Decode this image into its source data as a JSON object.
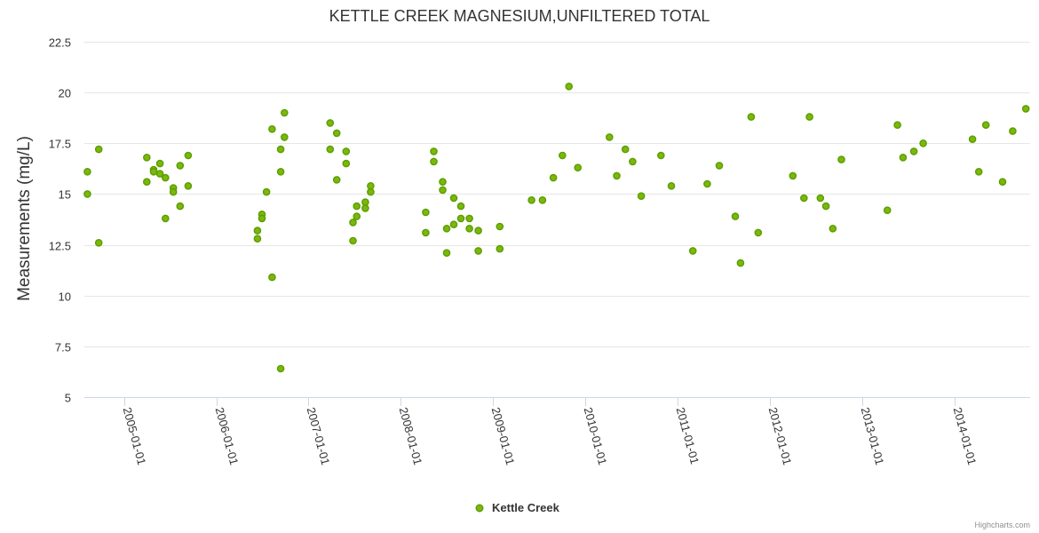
{
  "chart_data": {
    "type": "scatter",
    "title": "KETTLE CREEK MAGNESIUM,UNFILTERED TOTAL",
    "xlabel": "",
    "ylabel": "Measurements (mg/L)",
    "xlim": [
      "2004-07-28",
      "2014-10-27"
    ],
    "ylim": [
      5,
      22.5
    ],
    "y_ticks": [
      5,
      7.5,
      10,
      12.5,
      15,
      17.5,
      20,
      22.5
    ],
    "y_tick_labels": [
      "5",
      "7.5",
      "10",
      "12.5",
      "15",
      "17.5",
      "20",
      "22.5"
    ],
    "x_tick_labels": [
      "2005-01-01",
      "2006-01-01",
      "2007-01-01",
      "2008-01-01",
      "2009-01-01",
      "2010-01-01",
      "2011-01-01",
      "2012-01-01",
      "2013-01-01",
      "2014-01-01"
    ],
    "grid": true,
    "legend_position": "bottom-center",
    "series": [
      {
        "name": "Kettle Creek",
        "color": "#7cb70b",
        "points": [
          {
            "x": "2004-08-09",
            "y": 16.1
          },
          {
            "x": "2004-08-09",
            "y": 15.0
          },
          {
            "x": "2004-09-23",
            "y": 17.2
          },
          {
            "x": "2004-09-23",
            "y": 12.6
          },
          {
            "x": "2005-04-01",
            "y": 16.8
          },
          {
            "x": "2005-04-01",
            "y": 15.6
          },
          {
            "x": "2005-04-28",
            "y": 16.2
          },
          {
            "x": "2005-04-28",
            "y": 16.1
          },
          {
            "x": "2005-05-23",
            "y": 16.5
          },
          {
            "x": "2005-05-23",
            "y": 16.0
          },
          {
            "x": "2005-06-14",
            "y": 15.8
          },
          {
            "x": "2005-06-14",
            "y": 13.8
          },
          {
            "x": "2005-07-15",
            "y": 15.3
          },
          {
            "x": "2005-07-15",
            "y": 15.1
          },
          {
            "x": "2005-08-11",
            "y": 16.4
          },
          {
            "x": "2005-08-11",
            "y": 14.4
          },
          {
            "x": "2005-09-12",
            "y": 16.9
          },
          {
            "x": "2005-09-12",
            "y": 15.4
          },
          {
            "x": "2006-06-13",
            "y": 13.2
          },
          {
            "x": "2006-06-13",
            "y": 12.8
          },
          {
            "x": "2006-07-01",
            "y": 14.0
          },
          {
            "x": "2006-07-01",
            "y": 13.8
          },
          {
            "x": "2006-07-19",
            "y": 15.1
          },
          {
            "x": "2006-08-10",
            "y": 18.2
          },
          {
            "x": "2006-08-10",
            "y": 10.9
          },
          {
            "x": "2006-09-13",
            "y": 17.2
          },
          {
            "x": "2006-09-13",
            "y": 16.1
          },
          {
            "x": "2006-09-13",
            "y": 6.4
          },
          {
            "x": "2006-09-28",
            "y": 19.0
          },
          {
            "x": "2006-09-28",
            "y": 17.8
          },
          {
            "x": "2007-03-28",
            "y": 18.5
          },
          {
            "x": "2007-03-28",
            "y": 17.2
          },
          {
            "x": "2007-04-23",
            "y": 18.0
          },
          {
            "x": "2007-04-23",
            "y": 15.7
          },
          {
            "x": "2007-05-30",
            "y": 17.1
          },
          {
            "x": "2007-05-30",
            "y": 16.5
          },
          {
            "x": "2007-06-26",
            "y": 13.6
          },
          {
            "x": "2007-06-26",
            "y": 12.7
          },
          {
            "x": "2007-07-11",
            "y": 14.4
          },
          {
            "x": "2007-07-11",
            "y": 13.9
          },
          {
            "x": "2007-08-14",
            "y": 14.6
          },
          {
            "x": "2007-08-14",
            "y": 14.3
          },
          {
            "x": "2007-09-04",
            "y": 15.4
          },
          {
            "x": "2007-09-04",
            "y": 15.1
          },
          {
            "x": "2008-04-09",
            "y": 14.1
          },
          {
            "x": "2008-04-09",
            "y": 13.1
          },
          {
            "x": "2008-05-11",
            "y": 17.1
          },
          {
            "x": "2008-05-11",
            "y": 16.6
          },
          {
            "x": "2008-06-15",
            "y": 15.6
          },
          {
            "x": "2008-06-15",
            "y": 15.2
          },
          {
            "x": "2008-07-01",
            "y": 13.3
          },
          {
            "x": "2008-07-01",
            "y": 12.1
          },
          {
            "x": "2008-07-29",
            "y": 14.8
          },
          {
            "x": "2008-07-29",
            "y": 13.5
          },
          {
            "x": "2008-08-26",
            "y": 14.4
          },
          {
            "x": "2008-08-26",
            "y": 13.8
          },
          {
            "x": "2008-09-29",
            "y": 13.8
          },
          {
            "x": "2008-09-29",
            "y": 13.3
          },
          {
            "x": "2008-11-03",
            "y": 13.2
          },
          {
            "x": "2008-11-03",
            "y": 12.2
          },
          {
            "x": "2009-01-27",
            "y": 13.4
          },
          {
            "x": "2009-01-27",
            "y": 12.3
          },
          {
            "x": "2009-06-02",
            "y": 14.7
          },
          {
            "x": "2009-07-15",
            "y": 14.7
          },
          {
            "x": "2009-08-27",
            "y": 15.8
          },
          {
            "x": "2009-10-02",
            "y": 16.9
          },
          {
            "x": "2009-10-28",
            "y": 20.3
          },
          {
            "x": "2009-12-02",
            "y": 16.3
          },
          {
            "x": "2010-04-06",
            "y": 17.8
          },
          {
            "x": "2010-05-05",
            "y": 15.9
          },
          {
            "x": "2010-06-08",
            "y": 17.2
          },
          {
            "x": "2010-07-07",
            "y": 16.6
          },
          {
            "x": "2010-08-10",
            "y": 14.9
          },
          {
            "x": "2010-10-27",
            "y": 16.9
          },
          {
            "x": "2010-12-07",
            "y": 15.4
          },
          {
            "x": "2011-03-02",
            "y": 12.2
          },
          {
            "x": "2011-04-28",
            "y": 15.5
          },
          {
            "x": "2011-06-15",
            "y": 16.4
          },
          {
            "x": "2011-08-17",
            "y": 13.9
          },
          {
            "x": "2011-09-07",
            "y": 11.6
          },
          {
            "x": "2011-10-19",
            "y": 18.8
          },
          {
            "x": "2011-11-16",
            "y": 13.1
          },
          {
            "x": "2012-04-01",
            "y": 15.9
          },
          {
            "x": "2012-05-15",
            "y": 14.8
          },
          {
            "x": "2012-06-06",
            "y": 18.8
          },
          {
            "x": "2012-07-19",
            "y": 14.8
          },
          {
            "x": "2012-08-10",
            "y": 14.4
          },
          {
            "x": "2012-09-06",
            "y": 13.3
          },
          {
            "x": "2012-10-10",
            "y": 16.7
          },
          {
            "x": "2013-04-10",
            "y": 14.2
          },
          {
            "x": "2013-05-20",
            "y": 18.4
          },
          {
            "x": "2013-06-11",
            "y": 16.8
          },
          {
            "x": "2013-07-24",
            "y": 17.1
          },
          {
            "x": "2013-08-30",
            "y": 17.5
          },
          {
            "x": "2014-03-13",
            "y": 17.7
          },
          {
            "x": "2014-04-07",
            "y": 16.1
          },
          {
            "x": "2014-05-05",
            "y": 18.4
          },
          {
            "x": "2014-07-10",
            "y": 15.6
          },
          {
            "x": "2014-08-19",
            "y": 18.1
          },
          {
            "x": "2014-10-10",
            "y": 19.2
          }
        ]
      }
    ]
  },
  "credits": "Highcharts.com"
}
